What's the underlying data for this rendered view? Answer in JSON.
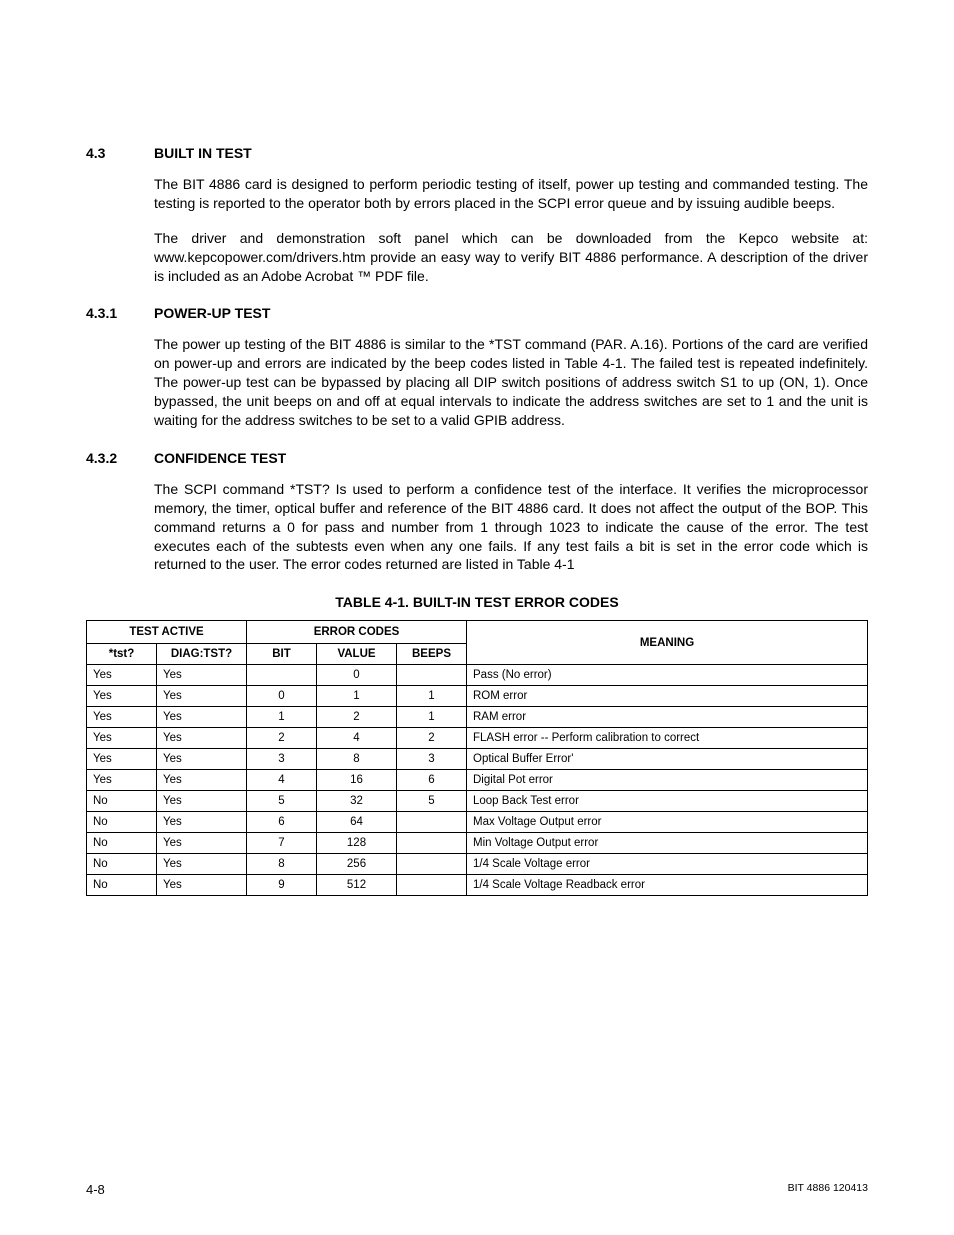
{
  "sections": [
    {
      "num": "4.3",
      "title": "BUILT IN TEST",
      "paras": [
        "The BIT 4886 card is designed to perform periodic testing of itself, power up testing and commanded testing. The testing is reported to the operator both by errors placed in the SCPI error queue and by issuing audible beeps.",
        "The driver and demonstration soft panel which can be downloaded from the Kepco website at: www.kepcopower.com/drivers.htm provide an easy way to verify BIT 4886 performance. A description of the driver is included as an Adobe Acrobat ™ PDF file."
      ]
    },
    {
      "num": "4.3.1",
      "title": "POWER-UP TEST",
      "paras": [
        "The power up testing of the BIT 4886 is similar to the *TST command (PAR. A.16). Portions of the card are verified on power-up and errors are indicated by the beep codes listed in Table 4-1. The failed test is repeated indefinitely. The power-up test can be bypassed by placing all DIP switch positions of address switch S1 to up (ON, 1). Once bypassed, the unit beeps on and off at equal intervals to indicate the address switches are set to 1 and the unit is waiting for the address switches to be set to a valid GPIB address."
      ]
    },
    {
      "num": "4.3.2",
      "title": "CONFIDENCE TEST",
      "paras": [
        "The SCPI command *TST? Is used to perform a confidence test of the interface. It verifies the microprocessor memory, the timer, optical buffer and reference of the BIT 4886 card. It does not affect the output of the BOP. This command returns a 0 for pass and number from 1 through 1023 to indicate the cause of the error. The test executes each of the subtests even when any one fails. If any test fails a bit is set in the error code which is returned to the user. The error codes returned are listed in Table 4-1"
      ]
    }
  ],
  "table": {
    "caption": "TABLE 4-1.  BUILT-IN TEST ERROR CODES",
    "group_headers": [
      "TEST ACTIVE",
      "ERROR CODES",
      "MEANING"
    ],
    "sub_headers": [
      "*tst?",
      "DIAG:TST?",
      "BIT",
      "VALUE",
      "BEEPS"
    ],
    "rows": [
      [
        "Yes",
        "Yes",
        "",
        "0",
        "",
        "Pass (No error)"
      ],
      [
        "Yes",
        "Yes",
        "0",
        "1",
        "1",
        "ROM error"
      ],
      [
        "Yes",
        "Yes",
        "1",
        "2",
        "1",
        "RAM error"
      ],
      [
        "Yes",
        "Yes",
        "2",
        "4",
        "2",
        "FLASH error -- Perform calibration to correct"
      ],
      [
        "Yes",
        "Yes",
        "3",
        "8",
        "3",
        "Optical Buffer Error'"
      ],
      [
        "Yes",
        "Yes",
        "4",
        "16",
        "6",
        "Digital Pot error"
      ],
      [
        "No",
        "Yes",
        "5",
        "32",
        "5",
        "Loop Back Test error"
      ],
      [
        "No",
        "Yes",
        "6",
        "64",
        "",
        "Max Voltage Output error"
      ],
      [
        "No",
        "Yes",
        "7",
        "128",
        "",
        "Min Voltage Output error"
      ],
      [
        "No",
        "Yes",
        "8",
        "256",
        "",
        "1/4 Scale Voltage error"
      ],
      [
        "No",
        "Yes",
        "9",
        "512",
        "",
        "1/4 Scale Voltage Readback error"
      ]
    ]
  },
  "footer": {
    "left": "4-8",
    "right": "BIT 4886 120413"
  }
}
